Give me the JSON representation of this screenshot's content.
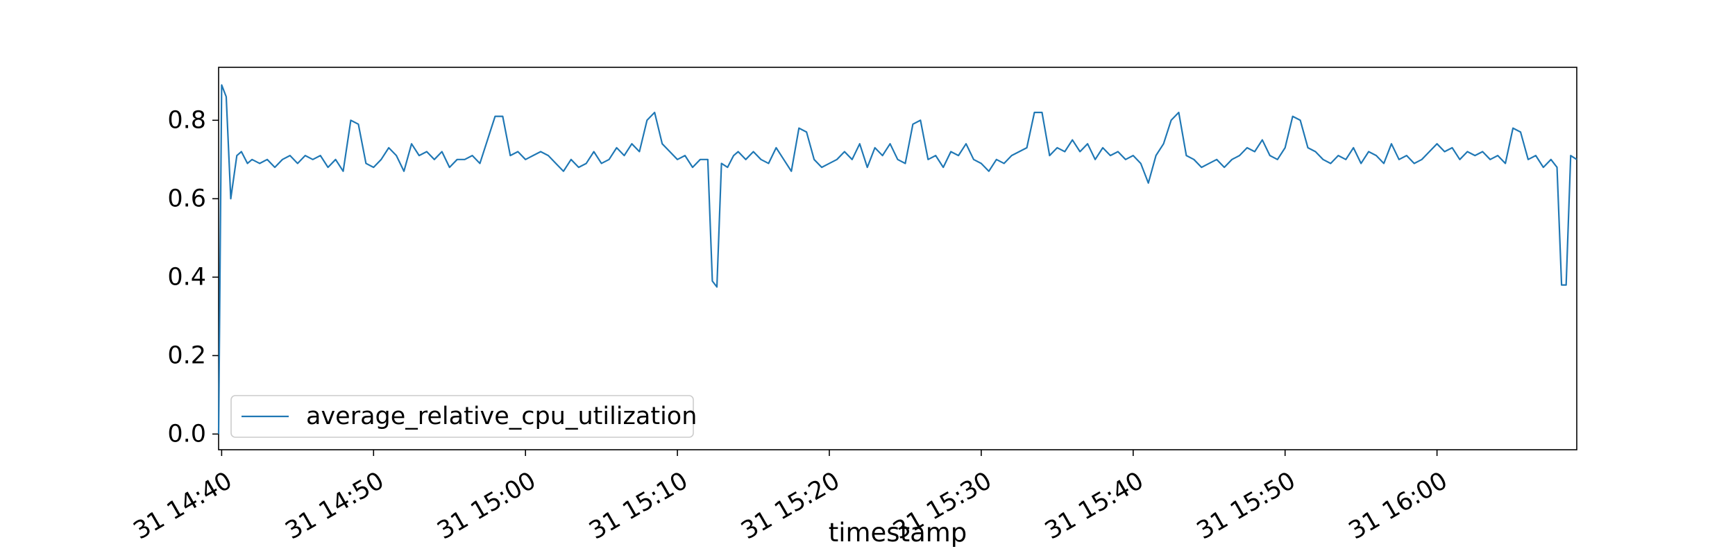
{
  "chart_data": {
    "type": "line",
    "title": "",
    "xlabel": "timestamp",
    "ylabel": "",
    "grid": false,
    "legend_position": "lower-left",
    "x_tick_labels": [
      "31 14:40",
      "31 14:50",
      "31 15:00",
      "31 15:10",
      "31 15:20",
      "31 15:30",
      "31 15:40",
      "31 15:50",
      "31 16:00"
    ],
    "x_tick_minutes": [
      0,
      10,
      20,
      30,
      40,
      50,
      60,
      70,
      80
    ],
    "x_range_minutes": [
      -0.2,
      89.2
    ],
    "x_range": [
      "31 14:39:48",
      "31 16:09:12"
    ],
    "y_ticks": [
      0.0,
      0.2,
      0.4,
      0.6,
      0.8
    ],
    "y_tick_labels": [
      "0.0",
      "0.2",
      "0.4",
      "0.6",
      "0.8"
    ],
    "ylim": [
      -0.04,
      0.935
    ],
    "series": [
      {
        "name": "average_relative_cpu_utilization",
        "color": "#1f77b4",
        "points": [
          [
            -0.2,
            0.0
          ],
          [
            0.0,
            0.89
          ],
          [
            0.3,
            0.86
          ],
          [
            0.6,
            0.6
          ],
          [
            1.0,
            0.71
          ],
          [
            1.3,
            0.72
          ],
          [
            1.7,
            0.69
          ],
          [
            2.0,
            0.7
          ],
          [
            2.5,
            0.69
          ],
          [
            3.0,
            0.7
          ],
          [
            3.5,
            0.68
          ],
          [
            4.0,
            0.7
          ],
          [
            4.5,
            0.71
          ],
          [
            5.0,
            0.69
          ],
          [
            5.5,
            0.71
          ],
          [
            6.0,
            0.7
          ],
          [
            6.5,
            0.71
          ],
          [
            7.0,
            0.68
          ],
          [
            7.5,
            0.7
          ],
          [
            8.0,
            0.67
          ],
          [
            8.5,
            0.8
          ],
          [
            9.0,
            0.79
          ],
          [
            9.5,
            0.69
          ],
          [
            10.0,
            0.68
          ],
          [
            10.5,
            0.7
          ],
          [
            11.0,
            0.73
          ],
          [
            11.5,
            0.71
          ],
          [
            12.0,
            0.67
          ],
          [
            12.5,
            0.74
          ],
          [
            13.0,
            0.71
          ],
          [
            13.5,
            0.72
          ],
          [
            14.0,
            0.7
          ],
          [
            14.5,
            0.72
          ],
          [
            15.0,
            0.68
          ],
          [
            15.5,
            0.7
          ],
          [
            16.0,
            0.7
          ],
          [
            16.5,
            0.71
          ],
          [
            17.0,
            0.69
          ],
          [
            17.5,
            0.75
          ],
          [
            18.0,
            0.81
          ],
          [
            18.5,
            0.81
          ],
          [
            19.0,
            0.71
          ],
          [
            19.5,
            0.72
          ],
          [
            20.0,
            0.7
          ],
          [
            20.5,
            0.71
          ],
          [
            21.0,
            0.72
          ],
          [
            21.5,
            0.71
          ],
          [
            22.0,
            0.69
          ],
          [
            22.5,
            0.67
          ],
          [
            23.0,
            0.7
          ],
          [
            23.5,
            0.68
          ],
          [
            24.0,
            0.69
          ],
          [
            24.5,
            0.72
          ],
          [
            25.0,
            0.69
          ],
          [
            25.5,
            0.7
          ],
          [
            26.0,
            0.73
          ],
          [
            26.5,
            0.71
          ],
          [
            27.0,
            0.74
          ],
          [
            27.5,
            0.72
          ],
          [
            28.0,
            0.8
          ],
          [
            28.5,
            0.82
          ],
          [
            29.0,
            0.74
          ],
          [
            29.5,
            0.72
          ],
          [
            30.0,
            0.7
          ],
          [
            30.5,
            0.71
          ],
          [
            31.0,
            0.68
          ],
          [
            31.5,
            0.7
          ],
          [
            32.0,
            0.7
          ],
          [
            32.3,
            0.39
          ],
          [
            32.6,
            0.375
          ],
          [
            32.9,
            0.69
          ],
          [
            33.3,
            0.68
          ],
          [
            33.7,
            0.71
          ],
          [
            34.0,
            0.72
          ],
          [
            34.5,
            0.7
          ],
          [
            35.0,
            0.72
          ],
          [
            35.5,
            0.7
          ],
          [
            36.0,
            0.69
          ],
          [
            36.5,
            0.73
          ],
          [
            37.0,
            0.7
          ],
          [
            37.5,
            0.67
          ],
          [
            38.0,
            0.78
          ],
          [
            38.5,
            0.77
          ],
          [
            39.0,
            0.7
          ],
          [
            39.5,
            0.68
          ],
          [
            40.0,
            0.69
          ],
          [
            40.5,
            0.7
          ],
          [
            41.0,
            0.72
          ],
          [
            41.5,
            0.7
          ],
          [
            42.0,
            0.74
          ],
          [
            42.5,
            0.68
          ],
          [
            43.0,
            0.73
          ],
          [
            43.5,
            0.71
          ],
          [
            44.0,
            0.74
          ],
          [
            44.5,
            0.7
          ],
          [
            45.0,
            0.69
          ],
          [
            45.5,
            0.79
          ],
          [
            46.0,
            0.8
          ],
          [
            46.5,
            0.7
          ],
          [
            47.0,
            0.71
          ],
          [
            47.5,
            0.68
          ],
          [
            48.0,
            0.72
          ],
          [
            48.5,
            0.71
          ],
          [
            49.0,
            0.74
          ],
          [
            49.5,
            0.7
          ],
          [
            50.0,
            0.69
          ],
          [
            50.5,
            0.67
          ],
          [
            51.0,
            0.7
          ],
          [
            51.5,
            0.69
          ],
          [
            52.0,
            0.71
          ],
          [
            52.5,
            0.72
          ],
          [
            53.0,
            0.73
          ],
          [
            53.5,
            0.82
          ],
          [
            54.0,
            0.82
          ],
          [
            54.5,
            0.71
          ],
          [
            55.0,
            0.73
          ],
          [
            55.5,
            0.72
          ],
          [
            56.0,
            0.75
          ],
          [
            56.5,
            0.72
          ],
          [
            57.0,
            0.74
          ],
          [
            57.5,
            0.7
          ],
          [
            58.0,
            0.73
          ],
          [
            58.5,
            0.71
          ],
          [
            59.0,
            0.72
          ],
          [
            59.5,
            0.7
          ],
          [
            60.0,
            0.71
          ],
          [
            60.5,
            0.69
          ],
          [
            61.0,
            0.64
          ],
          [
            61.5,
            0.71
          ],
          [
            62.0,
            0.74
          ],
          [
            62.5,
            0.8
          ],
          [
            63.0,
            0.82
          ],
          [
            63.5,
            0.71
          ],
          [
            64.0,
            0.7
          ],
          [
            64.5,
            0.68
          ],
          [
            65.0,
            0.69
          ],
          [
            65.5,
            0.7
          ],
          [
            66.0,
            0.68
          ],
          [
            66.5,
            0.7
          ],
          [
            67.0,
            0.71
          ],
          [
            67.5,
            0.73
          ],
          [
            68.0,
            0.72
          ],
          [
            68.5,
            0.75
          ],
          [
            69.0,
            0.71
          ],
          [
            69.5,
            0.7
          ],
          [
            70.0,
            0.73
          ],
          [
            70.5,
            0.81
          ],
          [
            71.0,
            0.8
          ],
          [
            71.5,
            0.73
          ],
          [
            72.0,
            0.72
          ],
          [
            72.5,
            0.7
          ],
          [
            73.0,
            0.69
          ],
          [
            73.5,
            0.71
          ],
          [
            74.0,
            0.7
          ],
          [
            74.5,
            0.73
          ],
          [
            75.0,
            0.69
          ],
          [
            75.5,
            0.72
          ],
          [
            76.0,
            0.71
          ],
          [
            76.5,
            0.69
          ],
          [
            77.0,
            0.74
          ],
          [
            77.5,
            0.7
          ],
          [
            78.0,
            0.71
          ],
          [
            78.5,
            0.69
          ],
          [
            79.0,
            0.7
          ],
          [
            79.5,
            0.72
          ],
          [
            80.0,
            0.74
          ],
          [
            80.5,
            0.72
          ],
          [
            81.0,
            0.73
          ],
          [
            81.5,
            0.7
          ],
          [
            82.0,
            0.72
          ],
          [
            82.5,
            0.71
          ],
          [
            83.0,
            0.72
          ],
          [
            83.5,
            0.7
          ],
          [
            84.0,
            0.71
          ],
          [
            84.5,
            0.69
          ],
          [
            85.0,
            0.78
          ],
          [
            85.5,
            0.77
          ],
          [
            86.0,
            0.7
          ],
          [
            86.5,
            0.71
          ],
          [
            87.0,
            0.68
          ],
          [
            87.5,
            0.7
          ],
          [
            87.9,
            0.68
          ],
          [
            88.2,
            0.38
          ],
          [
            88.5,
            0.38
          ],
          [
            88.8,
            0.71
          ],
          [
            89.2,
            0.7
          ]
        ]
      }
    ]
  }
}
